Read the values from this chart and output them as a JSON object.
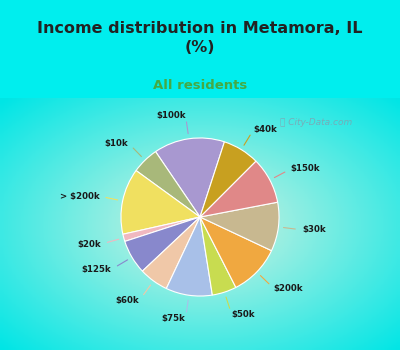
{
  "title": "Income distribution in Metamora, IL\n(%)",
  "subtitle": "All residents",
  "labels": [
    "$100k",
    "$10k",
    "> $200k",
    "$20k",
    "$125k",
    "$60k",
    "$75k",
    "$50k",
    "$200k",
    "$30k",
    "$150k",
    "$40k"
  ],
  "sizes": [
    14.5,
    5.5,
    13.5,
    1.5,
    7.0,
    6.0,
    9.5,
    5.0,
    10.5,
    10.0,
    9.5,
    7.5
  ],
  "colors": [
    "#a898d0",
    "#a8b87a",
    "#f0e060",
    "#f0b8c0",
    "#8888cc",
    "#f0c8a8",
    "#a8c0e8",
    "#c8dc50",
    "#f0a840",
    "#c8b890",
    "#e08888",
    "#c8a020"
  ],
  "bg_top": "#00eeee",
  "bg_chart": "#d0eee0",
  "title_color": "#222222",
  "subtitle_color": "#44aa44",
  "startangle": 72
}
